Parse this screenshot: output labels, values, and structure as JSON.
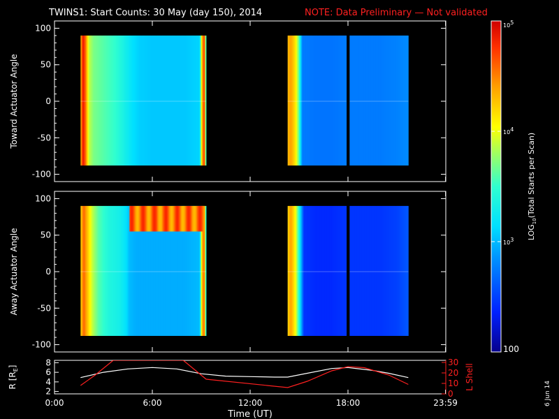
{
  "title": "TWINS1: Start Counts: 30 May (day 150), 2014",
  "note": "NOTE: Data Preliminary — Not validated",
  "side_date": "6 Jun 14",
  "colors": {
    "note": "#ff2020",
    "lshell": "#ff2020",
    "radius": "#ffffff"
  },
  "colorbar": {
    "label": "LOG10(Total Starts per Scan)",
    "label_main": "LOG",
    "label_sub": "10",
    "label_rest": "(Total Starts per Scan)",
    "ticks": [
      {
        "value": 100,
        "label": "100"
      },
      {
        "value": 1000,
        "label": "10",
        "sup": "3"
      },
      {
        "value": 10000,
        "label": "10",
        "sup": "4"
      },
      {
        "value": 100000,
        "label": "10",
        "sup": "5"
      }
    ],
    "range": [
      100,
      100000
    ],
    "scale": "log"
  },
  "chart_data": [
    {
      "type": "heatmap",
      "name": "toward",
      "ylabel": "Toward Actuator Angle",
      "ylim": [
        -110,
        110
      ],
      "yticks": [
        100,
        50,
        0,
        -50,
        -100
      ],
      "xlim": [
        0,
        24
      ],
      "angle_range": [
        -88,
        90
      ],
      "segments": [
        {
          "start": 1.6,
          "end": 9.3
        },
        {
          "start": 14.3,
          "end": 17.9
        },
        {
          "start": 18.1,
          "end": 21.7
        }
      ],
      "profile": [
        [
          1.6,
          4.3
        ],
        [
          1.75,
          4.9
        ],
        [
          1.9,
          4.6
        ],
        [
          2.1,
          3.9
        ],
        [
          2.4,
          3.7
        ],
        [
          3.0,
          3.6
        ],
        [
          3.7,
          3.5
        ],
        [
          4.2,
          3.35
        ],
        [
          4.5,
          3.25
        ],
        [
          4.8,
          3.15
        ],
        [
          5.2,
          3.08
        ],
        [
          6.0,
          3.05
        ],
        [
          7.0,
          3.05
        ],
        [
          8.0,
          3.05
        ],
        [
          8.9,
          3.1
        ],
        [
          9.05,
          4.3
        ],
        [
          9.2,
          4.8
        ],
        [
          9.3,
          3.2
        ],
        [
          14.3,
          4.3
        ],
        [
          14.5,
          4.4
        ],
        [
          14.8,
          4.1
        ],
        [
          15.0,
          3.6
        ],
        [
          15.2,
          2.75
        ],
        [
          16.0,
          2.72
        ],
        [
          17.0,
          2.72
        ],
        [
          17.9,
          2.75
        ],
        [
          18.1,
          2.75
        ],
        [
          19.0,
          2.75
        ],
        [
          20.0,
          2.75
        ],
        [
          21.0,
          2.78
        ],
        [
          21.7,
          2.82
        ]
      ]
    },
    {
      "type": "heatmap",
      "name": "away",
      "ylabel": "Away Actuator Angle",
      "ylim": [
        -110,
        110
      ],
      "yticks": [
        100,
        50,
        0,
        -50,
        -100
      ],
      "xlim": [
        0,
        24
      ],
      "angle_range": [
        -88,
        90
      ],
      "segments": [
        {
          "start": 1.6,
          "end": 9.3
        },
        {
          "start": 14.3,
          "end": 17.9
        },
        {
          "start": 18.1,
          "end": 21.7
        }
      ],
      "profile": [
        [
          1.6,
          4.2
        ],
        [
          1.8,
          4.6
        ],
        [
          2.0,
          4.3
        ],
        [
          2.3,
          3.9
        ],
        [
          2.7,
          3.6
        ],
        [
          3.3,
          3.4
        ],
        [
          4.0,
          3.3
        ],
        [
          4.4,
          3.15
        ],
        [
          4.6,
          3.0
        ],
        [
          5.0,
          2.95
        ],
        [
          6.0,
          2.95
        ],
        [
          7.0,
          2.95
        ],
        [
          8.0,
          2.95
        ],
        [
          8.9,
          3.0
        ],
        [
          9.05,
          4.3
        ],
        [
          9.2,
          4.6
        ],
        [
          9.3,
          3.1
        ],
        [
          14.3,
          4.2
        ],
        [
          14.5,
          4.4
        ],
        [
          14.8,
          4.0
        ],
        [
          15.0,
          3.4
        ],
        [
          15.3,
          2.45
        ],
        [
          16.0,
          2.4
        ],
        [
          17.0,
          2.4
        ],
        [
          17.9,
          2.45
        ],
        [
          18.1,
          2.45
        ],
        [
          19.0,
          2.45
        ],
        [
          20.0,
          2.45
        ],
        [
          21.0,
          2.5
        ],
        [
          21.7,
          2.6
        ]
      ],
      "band": {
        "start": 4.6,
        "end": 9.2,
        "angle_from": 55,
        "angle_to": 90,
        "log_value": 4.55
      }
    },
    {
      "type": "line",
      "name": "orbit",
      "xlabel": "Time (UT)",
      "xticks": [
        {
          "value": 0,
          "label": "0:00"
        },
        {
          "value": 6,
          "label": "6:00"
        },
        {
          "value": 12,
          "label": "12:00"
        },
        {
          "value": 18,
          "label": "18:00"
        },
        {
          "value": 23.983,
          "label": "23:59"
        }
      ],
      "xlim": [
        0,
        24
      ],
      "y_left": {
        "label": "R [RE]",
        "label_main": "R [R",
        "label_sub": "E",
        "label_end": "]",
        "ticks": [
          2,
          4,
          6,
          8
        ],
        "lim": [
          1.5,
          8.5
        ]
      },
      "y_right": {
        "label": "L Shell",
        "ticks": [
          0,
          10,
          20,
          30
        ],
        "lim": [
          0,
          32
        ]
      },
      "series": [
        {
          "name": "R [RE]",
          "axis": "left",
          "x": [
            1.6,
            3.0,
            4.5,
            6.0,
            7.5,
            9.0,
            10.5,
            12.0,
            13.5,
            14.3,
            15.5,
            17.0,
            18.0,
            19.5,
            20.5,
            21.7
          ],
          "y": [
            4.9,
            6.0,
            6.7,
            7.0,
            6.7,
            5.7,
            5.2,
            5.1,
            5.0,
            5.0,
            5.8,
            6.8,
            7.0,
            6.4,
            5.8,
            4.9
          ]
        },
        {
          "name": "L Shell",
          "axis": "right",
          "x": [
            1.6,
            2.5,
            3.6,
            7.9,
            9.3,
            14.3,
            15.5,
            17.0,
            18.0,
            19.0,
            20.5,
            21.7
          ],
          "y": [
            8,
            18,
            32,
            32,
            14,
            6,
            12,
            22,
            26,
            25,
            18,
            9
          ]
        }
      ]
    }
  ]
}
